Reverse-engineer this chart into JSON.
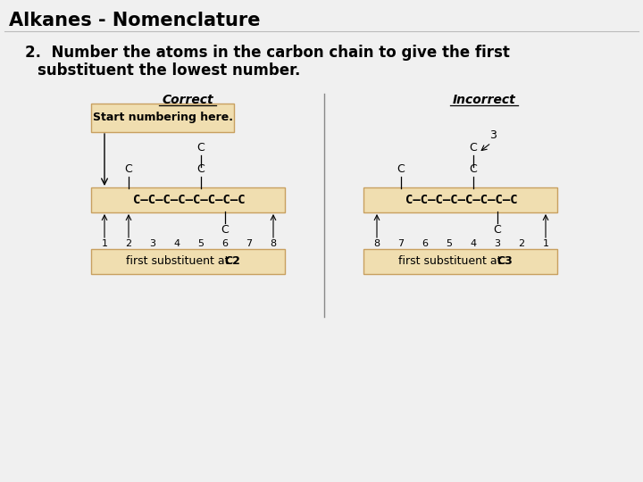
{
  "title": "Alkanes - Nomenclature",
  "rule_text_line1": "2.  Number the atoms in the carbon chain to give the first",
  "rule_text_line2": "     substituent the lowest number.",
  "correct_label": "Correct",
  "incorrect_label": "Incorrect",
  "correct_box_text": "Start numbering here.",
  "chain_str": "C–C–C–C–C–C–C–C",
  "correct_numbers": [
    "1",
    "2",
    "3",
    "4",
    "5",
    "6",
    "7",
    "8"
  ],
  "incorrect_numbers": [
    "8",
    "7",
    "6",
    "5",
    "4",
    "3",
    "2",
    "1"
  ],
  "correct_footer": "first substituent at C2",
  "incorrect_footer": "first substituent at C3",
  "box_fill": "#f0deb0",
  "box_edge": "#c8a060",
  "slide_bg": "#f0f0f0",
  "title_fontsize": 15,
  "body_fontsize": 12
}
